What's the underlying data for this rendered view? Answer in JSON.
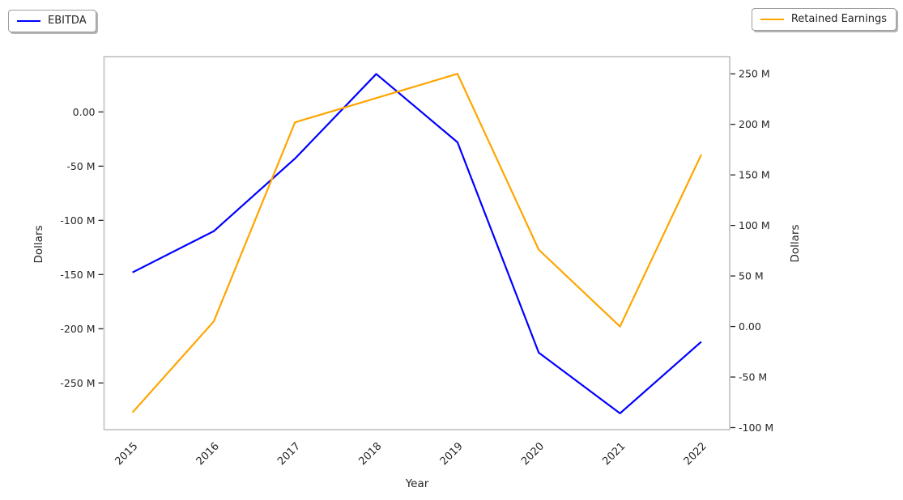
{
  "legend_left": {
    "label": "EBITDA"
  },
  "legend_right": {
    "label": "Retained Earnings"
  },
  "axes": {
    "x_title": "Year",
    "y_left_title": "Dollars",
    "y_right_title": "Dollars"
  },
  "colors": {
    "ebitda_line": "#0000ff",
    "retained_earnings_line": "#ffa500",
    "spine": "#cccccc",
    "tick_text": "#262626"
  },
  "chart_data": {
    "type": "line",
    "title": "",
    "x": [
      "2015",
      "2016",
      "2017",
      "2018",
      "2019",
      "2020",
      "2021",
      "2022"
    ],
    "xlabel": "Year",
    "x_tick_rotation_deg": 45,
    "grid": false,
    "series": [
      {
        "name": "EBITDA",
        "axis": "left",
        "color": "#0000ff",
        "values_millions": [
          -148,
          -110,
          -43,
          35,
          -28,
          -222,
          -278,
          -212
        ]
      },
      {
        "name": "Retained Earnings",
        "axis": "right",
        "color": "#ffa500",
        "values_millions": [
          -85,
          5,
          202,
          226,
          250,
          76,
          0,
          170
        ]
      }
    ],
    "left_axis": {
      "label": "Dollars",
      "ylim_millions": [
        -293,
        51
      ],
      "ticks": [
        {
          "label": "0.00",
          "value": 0
        },
        {
          "label": "-50 M",
          "value": -50
        },
        {
          "label": "-100 M",
          "value": -100
        },
        {
          "label": "-150 M",
          "value": -150
        },
        {
          "label": "-200 M",
          "value": -200
        },
        {
          "label": "-250 M",
          "value": -250
        }
      ]
    },
    "right_axis": {
      "label": "Dollars",
      "ylim_millions": [
        -102,
        267
      ],
      "ticks": [
        {
          "label": "250 M",
          "value": 250
        },
        {
          "label": "200 M",
          "value": 200
        },
        {
          "label": "150 M",
          "value": 150
        },
        {
          "label": "100 M",
          "value": 100
        },
        {
          "label": "50 M",
          "value": 50
        },
        {
          "label": "0.00",
          "value": 0
        },
        {
          "label": "-50 M",
          "value": -50
        },
        {
          "label": "-100 M",
          "value": -100
        }
      ]
    },
    "legend_positions": [
      "upper left",
      "upper right"
    ]
  }
}
